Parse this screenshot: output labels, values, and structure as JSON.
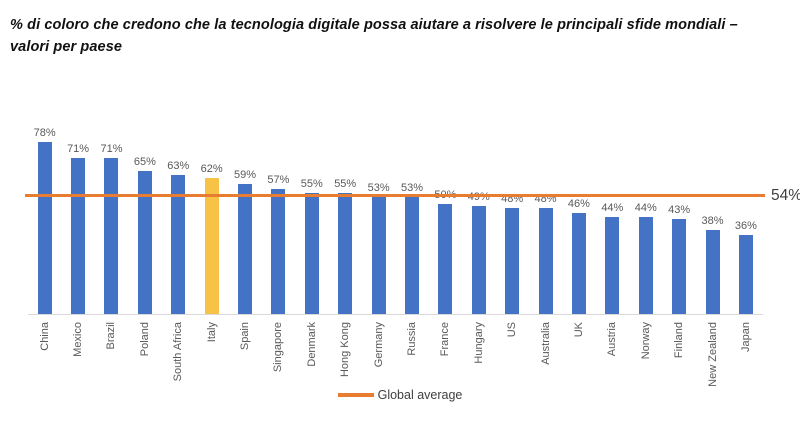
{
  "chart_data": {
    "type": "bar",
    "title": "% di coloro che credono che la tecnologia digitale possa aiutare a risolvere le principali sfide mondiali –\nvalori per paese",
    "categories": [
      "China",
      "Mexico",
      "Brazil",
      "Poland",
      "South Africa",
      "Italy",
      "Spain",
      "Singapore",
      "Denmark",
      "Hong Kong",
      "Germany",
      "Russia",
      "France",
      "Hungary",
      "US",
      "Australia",
      "UK",
      "Austria",
      "Norway",
      "Finland",
      "New Zealand",
      "Japan"
    ],
    "values": [
      78,
      71,
      71,
      65,
      63,
      62,
      59,
      57,
      55,
      55,
      53,
      53,
      50,
      49,
      48,
      48,
      46,
      44,
      44,
      43,
      38,
      36
    ],
    "value_labels": [
      "78%",
      "71%",
      "71%",
      "65%",
      "63%",
      "62%",
      "59%",
      "57%",
      "55%",
      "55%",
      "53%",
      "53%",
      "50%",
      "49%",
      "48%",
      "48%",
      "46%",
      "44%",
      "44%",
      "43%",
      "38%",
      "36%"
    ],
    "highlight_category": "Italy",
    "bar_color": "#4472C4",
    "highlight_color": "#F6C346",
    "global_average": 54,
    "average_label": "54%",
    "average_line_color": "#E87D31",
    "legend_label": "Global average",
    "xlabel": "",
    "ylabel": "",
    "ylim": [
      0,
      100
    ],
    "grid": false,
    "legend_position": "bottom-center"
  }
}
